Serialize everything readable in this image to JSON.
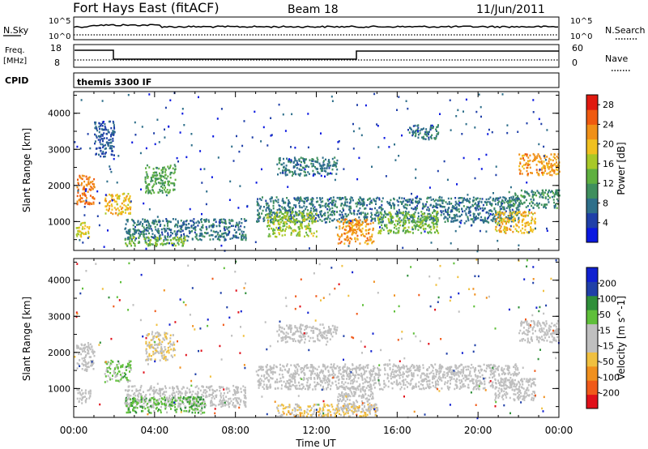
{
  "header": {
    "station": "Fort Hays East (fitACF)",
    "beam": "Beam 18",
    "date": "11/Jun/2011"
  },
  "status_panels": {
    "nsky_label": "N.Sky",
    "nsky_ticks": [
      "10^5",
      "10^0"
    ],
    "nsearch_label": "N.Search",
    "nsearch_ticks": [
      "10^5",
      "10^0"
    ],
    "freq_label_top": "Freq.",
    "freq_label_bottom": "[MHz]",
    "freq_ticks": [
      "18",
      "8"
    ],
    "nave_label": "Nave",
    "nave_ticks": [
      "60",
      "0"
    ],
    "cpid_label": "CPID",
    "cpid_value": "themis 3300 IF"
  },
  "colors": {
    "power_scale": [
      "#0a18e0",
      "#1f3fa8",
      "#2e6f8a",
      "#3f8f5e",
      "#5fb040",
      "#a8c828",
      "#f0c020",
      "#f09018",
      "#ef5a10",
      "#e01a10"
    ],
    "velocity_scale": [
      "#e0101a",
      "#f05a1a",
      "#f0901e",
      "#f0c040",
      "#bfbfbf",
      "#bfbfbf",
      "#5fbf3a",
      "#2f8f3a",
      "#2040a8",
      "#1020d0"
    ]
  },
  "chart_data": [
    {
      "type": "heatmap",
      "name": "power",
      "xlabel": "",
      "ylabel": "Slant Range [km]",
      "xlim": [
        0,
        24
      ],
      "ylim": [
        200,
        4600
      ],
      "yticks": [
        "1000",
        "2000",
        "3000",
        "4000"
      ],
      "colorbar_label": "Power [dB]",
      "colorbar_ticks": [
        "4",
        "8",
        "12",
        "16",
        "20",
        "24",
        "28"
      ],
      "colorbar_range": [
        0,
        30
      ],
      "regions": [
        {
          "t0": 0.1,
          "t1": 1.0,
          "r0": 1500,
          "r1": 2300,
          "level": 24
        },
        {
          "t0": 0.1,
          "t1": 0.8,
          "r0": 600,
          "r1": 1000,
          "level": 18
        },
        {
          "t0": 1.5,
          "t1": 2.8,
          "r0": 1200,
          "r1": 1800,
          "level": 20
        },
        {
          "t0": 2.5,
          "t1": 8.5,
          "r0": 500,
          "r1": 1100,
          "level": 8
        },
        {
          "t0": 2.5,
          "t1": 5.5,
          "r0": 350,
          "r1": 600,
          "level": 14
        },
        {
          "t0": 3.5,
          "t1": 5.0,
          "r0": 1800,
          "r1": 2600,
          "level": 12
        },
        {
          "t0": 9.0,
          "t1": 22.0,
          "r0": 1000,
          "r1": 1700,
          "level": 8
        },
        {
          "t0": 9.5,
          "t1": 12.0,
          "r0": 600,
          "r1": 1300,
          "level": 16
        },
        {
          "t0": 13.0,
          "t1": 14.8,
          "r0": 400,
          "r1": 1100,
          "level": 22
        },
        {
          "t0": 15.0,
          "t1": 18.0,
          "r0": 700,
          "r1": 1300,
          "level": 14
        },
        {
          "t0": 20.8,
          "t1": 22.8,
          "r0": 700,
          "r1": 1300,
          "level": 20
        },
        {
          "t0": 21.5,
          "t1": 24.0,
          "r0": 1400,
          "r1": 1900,
          "level": 10
        },
        {
          "t0": 22.0,
          "t1": 24.0,
          "r0": 2300,
          "r1": 2900,
          "level": 22
        },
        {
          "t0": 10.0,
          "t1": 13.0,
          "r0": 2300,
          "r1": 2800,
          "level": 8
        },
        {
          "t0": 1.0,
          "t1": 2.0,
          "r0": 2800,
          "r1": 3800,
          "level": 6
        },
        {
          "t0": 16.5,
          "t1": 18.0,
          "r0": 3300,
          "r1": 3700,
          "level": 8
        }
      ]
    },
    {
      "type": "heatmap",
      "name": "velocity",
      "xlabel": "Time UT",
      "ylabel": "Slant Range [km]",
      "xlim": [
        0,
        24
      ],
      "ylim": [
        200,
        4600
      ],
      "xticks": [
        "00:00",
        "04:00",
        "08:00",
        "12:00",
        "16:00",
        "20:00",
        "00:00"
      ],
      "yticks": [
        "1000",
        "2000",
        "3000",
        "4000"
      ],
      "colorbar_label": "Velocity [m s^-1]",
      "colorbar_ticks": [
        "200",
        "100",
        "50",
        "15",
        "-15",
        "-50",
        "-100",
        "-200"
      ],
      "colorbar_range": [
        -250,
        250
      ],
      "regions": [
        {
          "t0": 0.1,
          "t1": 1.0,
          "r0": 1500,
          "r1": 2300,
          "level": 0
        },
        {
          "t0": 0.1,
          "t1": 0.8,
          "r0": 600,
          "r1": 1000,
          "level": 0
        },
        {
          "t0": 1.5,
          "t1": 2.8,
          "r0": 1200,
          "r1": 1800,
          "level": 60
        },
        {
          "t0": 2.5,
          "t1": 8.5,
          "r0": 500,
          "r1": 1100,
          "level": 0
        },
        {
          "t0": 2.5,
          "t1": 6.5,
          "r0": 350,
          "r1": 800,
          "level": 80
        },
        {
          "t0": 3.5,
          "t1": 5.0,
          "r0": 1800,
          "r1": 2600,
          "level": -40
        },
        {
          "t0": 9.0,
          "t1": 22.0,
          "r0": 1000,
          "r1": 1700,
          "level": 0
        },
        {
          "t0": 10.0,
          "t1": 15.0,
          "r0": 250,
          "r1": 600,
          "level": -60
        },
        {
          "t0": 13.0,
          "t1": 14.8,
          "r0": 400,
          "r1": 1100,
          "level": 0
        },
        {
          "t0": 20.8,
          "t1": 22.8,
          "r0": 700,
          "r1": 1300,
          "level": 0
        },
        {
          "t0": 22.0,
          "t1": 24.0,
          "r0": 2300,
          "r1": 2900,
          "level": 0
        },
        {
          "t0": 10.0,
          "t1": 13.0,
          "r0": 2300,
          "r1": 2800,
          "level": 0
        }
      ]
    }
  ]
}
